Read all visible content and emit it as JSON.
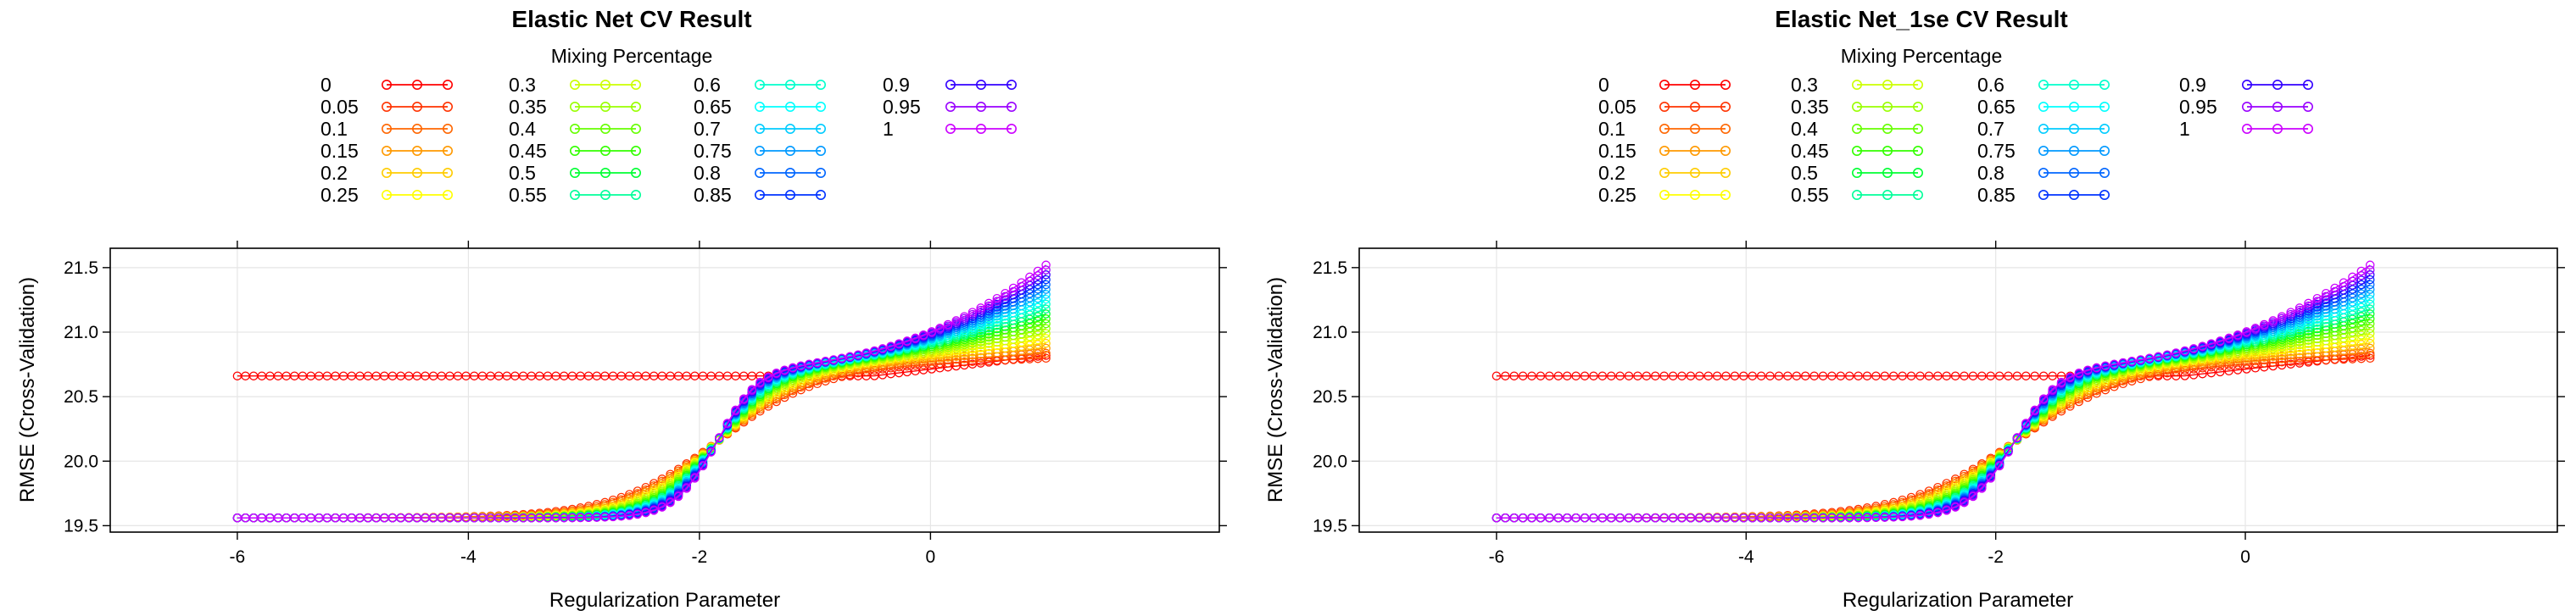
{
  "chart_data": [
    {
      "type": "line",
      "title": "Elastic Net CV Result",
      "xlabel": "Regularization Parameter",
      "ylabel": "RMSE (Cross-Validation)",
      "legend_title": "Mixing Percentage",
      "legend_position": "top",
      "legend_entries": [
        "0",
        "0.05",
        "0.1",
        "0.15",
        "0.2",
        "0.25",
        "0.3",
        "0.35",
        "0.4",
        "0.45",
        "0.5",
        "0.55",
        "0.6",
        "0.65",
        "0.7",
        "0.75",
        "0.8",
        "0.85",
        "0.9",
        "0.95",
        "1"
      ],
      "xlim": [
        -7.1,
        2.5
      ],
      "ylim": [
        19.45,
        21.65
      ],
      "x_ticks": [
        -6,
        -4,
        -2,
        0
      ],
      "x_tick_labels": [
        "-6",
        "-4",
        "-2",
        "0"
      ],
      "y_ticks": [
        19.5,
        20.0,
        20.5,
        21.0,
        21.5
      ],
      "y_tick_labels": [
        "19.5",
        "20.0",
        "20.5",
        "21.0",
        "21.5"
      ],
      "grid": true,
      "x_range": [
        -6,
        1
      ],
      "points_per_series": 100,
      "marker": "circle",
      "series_model": {
        "flat_series": {
          "name": "0",
          "value": 20.66,
          "rises_to_at_max_x": 20.82
        },
        "low_plateau": 19.56,
        "transition_center": -1.85,
        "transition_value": 20.42,
        "upper_plateau_at_-1.5": 20.75,
        "end_values_at_max_x": {
          "0.05": 20.8,
          "1": 21.52
        }
      }
    },
    {
      "type": "line",
      "title": "Elastic Net_1se CV Result",
      "xlabel": "Regularization Parameter",
      "ylabel": "RMSE (Cross-Validation)",
      "legend_title": "Mixing Percentage",
      "legend_position": "top",
      "legend_entries": [
        "0",
        "0.05",
        "0.1",
        "0.15",
        "0.2",
        "0.25",
        "0.3",
        "0.35",
        "0.4",
        "0.45",
        "0.5",
        "0.55",
        "0.6",
        "0.65",
        "0.7",
        "0.75",
        "0.8",
        "0.85",
        "0.9",
        "0.95",
        "1"
      ],
      "xlim": [
        -7.1,
        2.5
      ],
      "ylim": [
        19.45,
        21.65
      ],
      "x_ticks": [
        -6,
        -4,
        -2,
        0
      ],
      "x_tick_labels": [
        "-6",
        "-4",
        "-2",
        "0"
      ],
      "y_ticks": [
        19.5,
        20.0,
        20.5,
        21.0,
        21.5
      ],
      "y_tick_labels": [
        "19.5",
        "20.0",
        "20.5",
        "21.0",
        "21.5"
      ],
      "grid": true,
      "x_range": [
        -6,
        1
      ],
      "points_per_series": 100,
      "marker": "circle",
      "series_model": {
        "flat_series": {
          "name": "0",
          "value": 20.66,
          "rises_to_at_max_x": 20.82
        },
        "low_plateau": 19.56,
        "transition_center": -1.85,
        "transition_value": 20.42,
        "upper_plateau_at_-1.5": 20.75,
        "end_values_at_max_x": {
          "0.05": 20.8,
          "1": 21.52
        }
      }
    }
  ],
  "colors": {
    "series": [
      "#ff0000",
      "#ff3300",
      "#ff6600",
      "#ff9900",
      "#ffcc00",
      "#ffff00",
      "#ccff00",
      "#99ff00",
      "#66ff00",
      "#33ff00",
      "#00ff33",
      "#00ff99",
      "#00ffcc",
      "#00ffff",
      "#00ccff",
      "#0099ff",
      "#0066ff",
      "#0033ff",
      "#3300ff",
      "#9900ff",
      "#cc00ff"
    ],
    "axis": "#000000",
    "grid": "#e6e6e6"
  }
}
